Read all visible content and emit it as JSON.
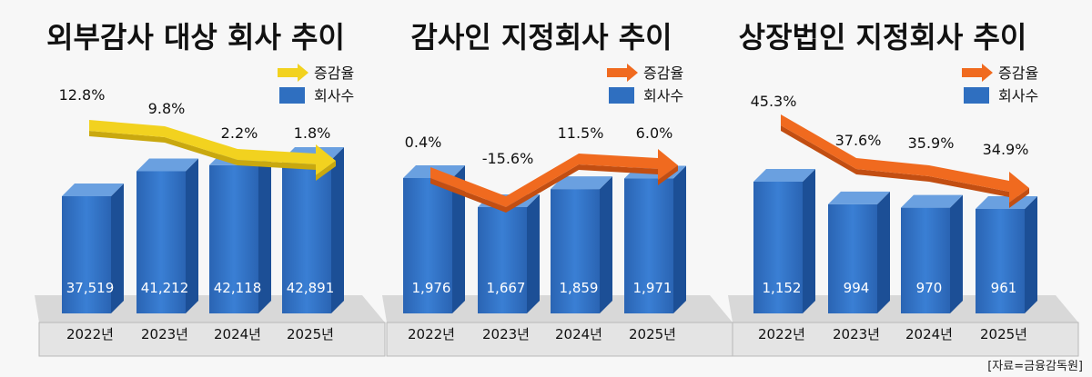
{
  "source": "[자료=금융감독원]",
  "legend": {
    "rate_label": "증감율",
    "count_label": "회사수"
  },
  "colors": {
    "bar_front": "#2f6fc0",
    "bar_side": "#1c4f96",
    "bar_top": "#6aa0e0",
    "arrow_yellow": "#f2d21f",
    "arrow_orange": "#f06a1f",
    "platform": "#d8d8d8",
    "platform_edge": "#b9b9b9"
  },
  "chart_data": [
    {
      "type": "bar",
      "title": "외부감사 대상 회사 추이",
      "categories": [
        "2022년",
        "2023년",
        "2024년",
        "2025년"
      ],
      "series": [
        {
          "name": "회사수",
          "values": [
            37519,
            41212,
            42118,
            42891
          ],
          "labels": [
            "37,519",
            "41,212",
            "42,118",
            "42,891"
          ]
        },
        {
          "name": "증감율",
          "type": "line",
          "values": [
            12.8,
            9.8,
            2.2,
            1.8
          ],
          "labels": [
            "12.8%",
            "9.8%",
            "2.2%",
            "1.8%"
          ]
        }
      ],
      "arrow_color": "yellow"
    },
    {
      "type": "bar",
      "title": "감사인 지정회사 추이",
      "categories": [
        "2022년",
        "2023년",
        "2024년",
        "2025년"
      ],
      "series": [
        {
          "name": "회사수",
          "values": [
            1976,
            1667,
            1859,
            1971
          ],
          "labels": [
            "1,976",
            "1,667",
            "1,859",
            "1,971"
          ]
        },
        {
          "name": "증감율",
          "type": "line",
          "values": [
            0.4,
            -15.6,
            11.5,
            6.0
          ],
          "labels": [
            "0.4%",
            "-15.6%",
            "11.5%",
            "6.0%"
          ]
        }
      ],
      "arrow_color": "orange"
    },
    {
      "type": "bar",
      "title": "상장법인 지정회사 추이",
      "categories": [
        "2022년",
        "2023년",
        "2024년",
        "2025년"
      ],
      "series": [
        {
          "name": "회사수",
          "values": [
            1152,
            994,
            970,
            961
          ],
          "labels": [
            "1,152",
            "994",
            "970",
            "961"
          ]
        },
        {
          "name": "증감율",
          "type": "line",
          "values": [
            45.3,
            37.6,
            35.9,
            34.9
          ],
          "labels": [
            "45.3%",
            "37.6%",
            "35.9%",
            "34.9%"
          ]
        }
      ],
      "arrow_color": "orange"
    }
  ]
}
